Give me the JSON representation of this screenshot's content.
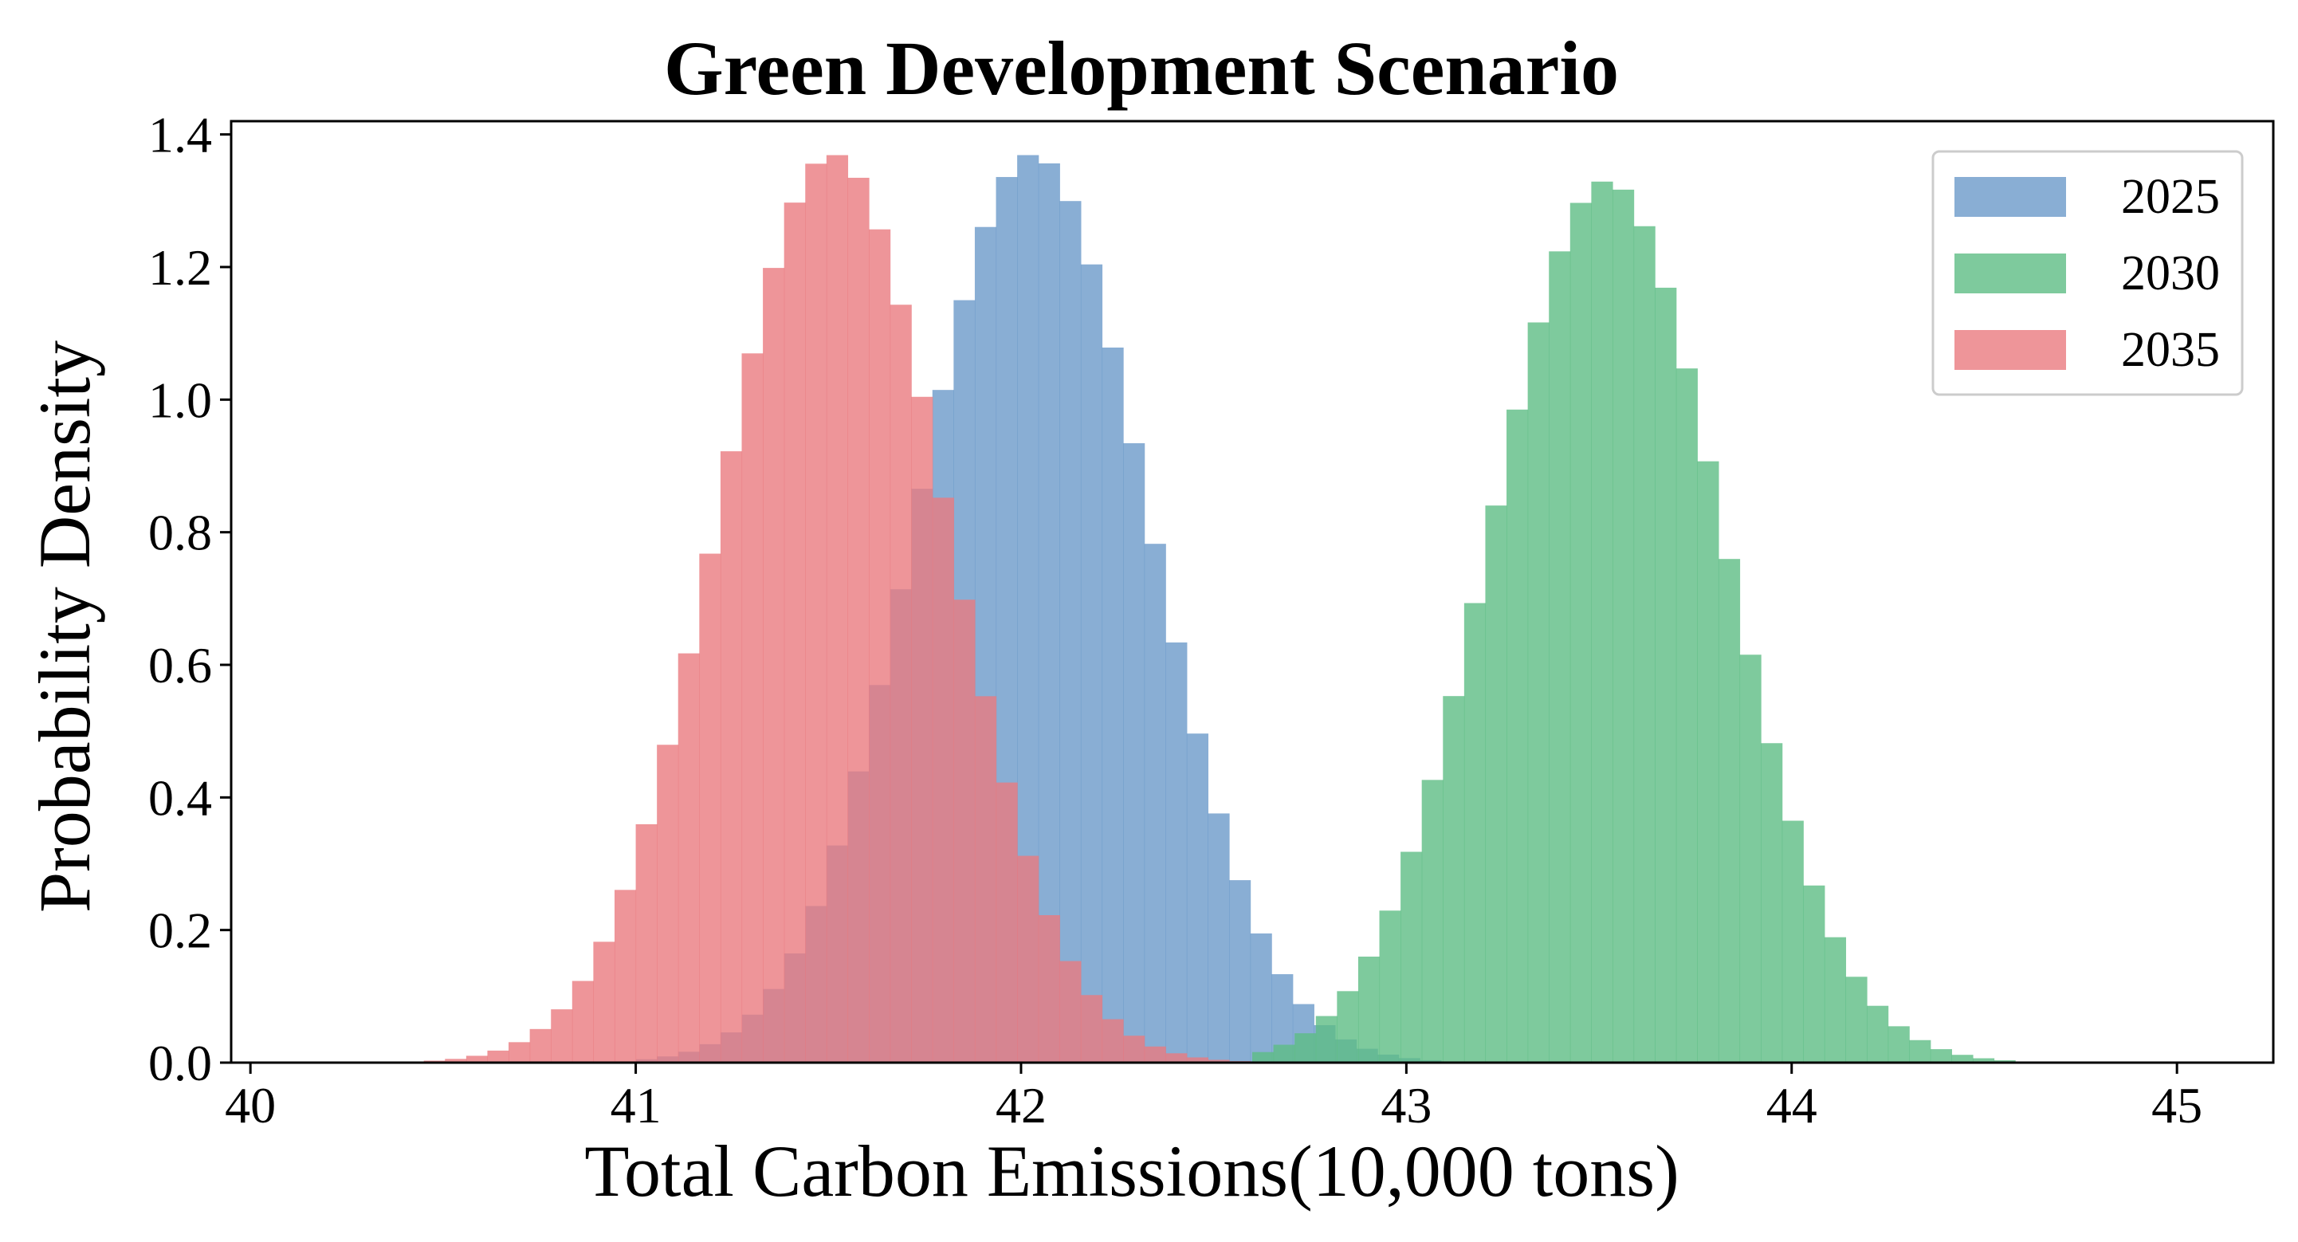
{
  "chart_data": {
    "type": "bar",
    "subtype": "histogram",
    "title": "Green Development Scenario",
    "xlabel": "Total Carbon Emissions(10,000 tons)",
    "ylabel": "Probability Density",
    "xlim": [
      39.95,
      45.25
    ],
    "ylim": [
      0,
      1.42
    ],
    "xticks": [
      40,
      41,
      42,
      43,
      44,
      45
    ],
    "yticks": [
      0.0,
      0.2,
      0.4,
      0.6,
      0.8,
      1.0,
      1.2,
      1.4
    ],
    "ytick_labels": [
      "0.0",
      "0.2",
      "0.4",
      "0.6",
      "0.8",
      "1.0",
      "1.2",
      "1.4"
    ],
    "grid": false,
    "legend_position": "top-right",
    "bin_width": 0.055,
    "series": [
      {
        "name": "2025",
        "color": "#6b9ac9",
        "opacity": 0.8,
        "mean": 42.03,
        "sd": 0.3,
        "peak": 1.37,
        "range": [
          41.0,
          43.1
        ]
      },
      {
        "name": "2030",
        "color": "#5ebd85",
        "opacity": 0.8,
        "mean": 43.52,
        "sd": 0.3,
        "peak": 1.33,
        "range": [
          42.6,
          44.7
        ]
      },
      {
        "name": "2035",
        "color": "#ea7b80",
        "opacity": 0.8,
        "mean": 41.51,
        "sd": 0.295,
        "peak": 1.37,
        "range": [
          40.45,
          42.65
        ]
      }
    ]
  }
}
